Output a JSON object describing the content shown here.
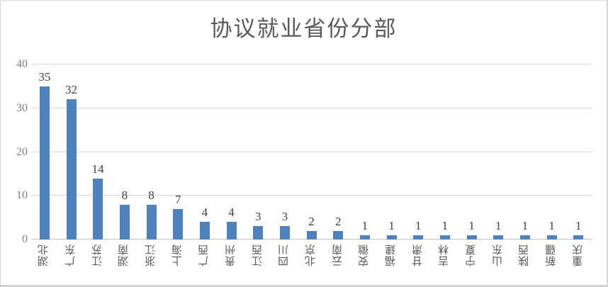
{
  "chart_data": {
    "type": "bar",
    "title": "协议就业省份分部",
    "categories": [
      "湖北",
      "广东",
      "江苏",
      "湖南",
      "浙江",
      "上海",
      "广西",
      "贵州",
      "江西",
      "四川",
      "北京",
      "云南",
      "安徽",
      "福建",
      "甘肃",
      "吉林",
      "宁夏",
      "山东",
      "陕西",
      "新疆",
      "重庆"
    ],
    "values": [
      35,
      32,
      14,
      8,
      8,
      7,
      4,
      4,
      3,
      3,
      2,
      2,
      1,
      1,
      1,
      1,
      1,
      1,
      1,
      1,
      1
    ],
    "xlabel": "",
    "ylabel": "",
    "ylim": [
      0,
      40
    ],
    "yticks": [
      0,
      10,
      20,
      30,
      40
    ],
    "grid": true,
    "legend_position": "none",
    "data_labels": true,
    "category_label_rotation": "vertical-bottom-to-top"
  },
  "colors": {
    "bar": "#4F81BD",
    "title_text": "#595959",
    "axis_tick_text": "#7f7f7f",
    "value_label_text": "#3f3f3f",
    "category_text": "#595959",
    "gridline": "#d9d9d9",
    "frame_border": "#d9d9d9"
  }
}
